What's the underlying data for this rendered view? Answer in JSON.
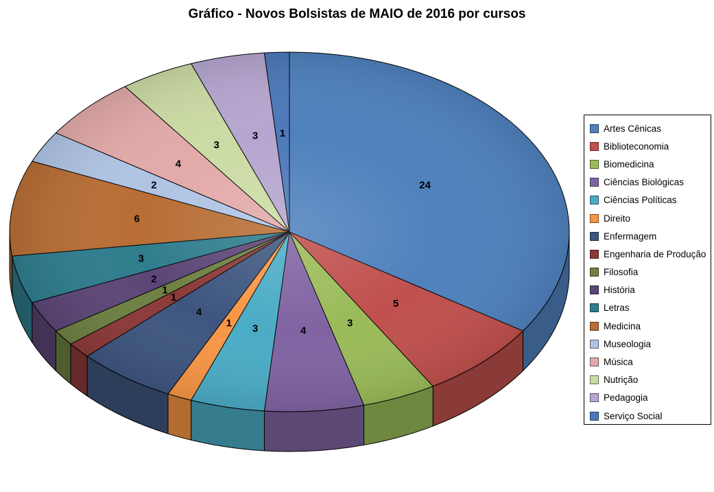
{
  "chart_data": {
    "type": "pie",
    "title": "Gráfico - Novos Bolsistas de MAIO de 2016 por cursos",
    "categories": [
      "Artes Cênicas",
      "Biblioteconomia",
      "Biomedicina",
      "Ciências Biológicas",
      "Ciências Políticas",
      "Direito",
      "Enfermagem",
      "Engenharia de Produção",
      "Filosofia",
      "História",
      "Letras",
      "Medicina",
      "Museologia",
      "Música",
      "Nutrição",
      "Pedagogia",
      "Serviço Social"
    ],
    "values": [
      24,
      5,
      3,
      4,
      3,
      1,
      4,
      1,
      1,
      2,
      3,
      6,
      2,
      4,
      3,
      3,
      1
    ],
    "colors": [
      "#4F81BD",
      "#C0504D",
      "#9BBB59",
      "#8064A2",
      "#4BACC6",
      "#F79646",
      "#3E567F",
      "#8C3A38",
      "#6E8043",
      "#5C4677",
      "#2F7D8E",
      "#B86E35",
      "#AFC4E4",
      "#E2AAA9",
      "#CBDBA4",
      "#B5A6CF",
      "#4D79BA"
    ],
    "labels": "value",
    "start_angle_deg": 0,
    "direction": "clockwise",
    "effect_3d": true,
    "legend_position": "right",
    "background_color": "#FFFFFF",
    "title_color": "#000000",
    "slice_outline_color": "#000000"
  }
}
